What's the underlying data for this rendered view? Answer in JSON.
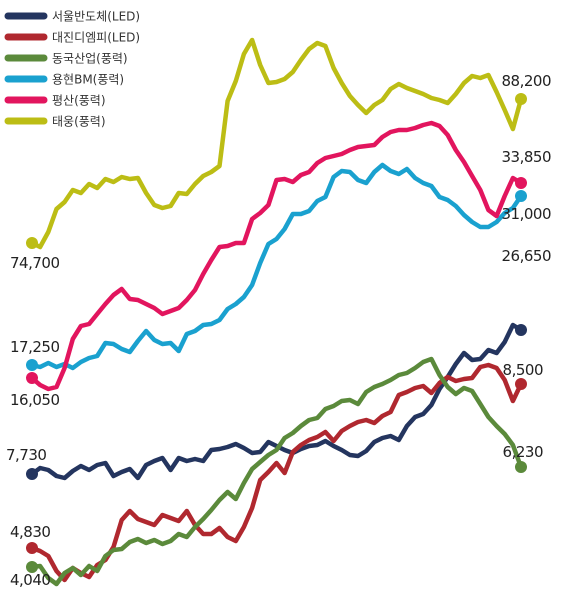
{
  "chart_data": {
    "type": "line",
    "title": "",
    "xlabel": "",
    "ylabel": "",
    "grid": false,
    "legend_position": "top-left",
    "x": [
      0,
      1,
      2,
      3,
      4,
      5,
      6,
      7,
      8,
      9,
      10,
      11,
      12,
      13,
      14,
      15,
      16,
      17,
      18,
      19,
      20,
      21,
      22,
      23,
      24,
      25,
      26,
      27,
      28,
      29,
      30,
      31,
      32,
      33,
      34,
      35,
      36,
      37,
      38,
      39,
      40,
      41,
      42,
      43,
      44,
      45,
      46,
      47,
      48,
      49,
      50,
      51,
      52,
      53,
      54,
      55,
      56,
      57,
      58,
      59,
      60
    ],
    "series": [
      {
        "name": "서울반도체(LED)",
        "color": "#24355f",
        "start_label": "7,730",
        "end_label": "26,650",
        "values": [
          474,
          468,
          470,
          476,
          478,
          471,
          466,
          470,
          465,
          463,
          476,
          472,
          469,
          478,
          465,
          461,
          458,
          470,
          458,
          461,
          459,
          461,
          450,
          449,
          447,
          444,
          448,
          453,
          452,
          442,
          446,
          450,
          453,
          449,
          446,
          445,
          441,
          446,
          450,
          455,
          456,
          451,
          442,
          438,
          436,
          440,
          426,
          417,
          414,
          405,
          389,
          377,
          364,
          353,
          360,
          359,
          350,
          353,
          342,
          325,
          330
        ]
      },
      {
        "name": "대진디엠피(LED)",
        "color": "#b0282f",
        "start_label": "4,830",
        "end_label": "8,500",
        "values": [
          548,
          551,
          556,
          571,
          580,
          568,
          573,
          577,
          565,
          560,
          547,
          520,
          511,
          519,
          522,
          525,
          515,
          518,
          521,
          511,
          525,
          534,
          534,
          528,
          537,
          541,
          527,
          508,
          480,
          472,
          463,
          473,
          452,
          445,
          440,
          437,
          432,
          441,
          431,
          426,
          422,
          420,
          423,
          416,
          412,
          395,
          392,
          388,
          386,
          393,
          383,
          377,
          381,
          379,
          378,
          367,
          365,
          368,
          380,
          401,
          384
        ]
      },
      {
        "name": "동국산업(풍력)",
        "color": "#5b8a3b",
        "start_label": "4,040",
        "end_label": "6,230",
        "values": [
          567,
          566,
          578,
          584,
          573,
          568,
          575,
          566,
          571,
          556,
          550,
          549,
          542,
          539,
          543,
          540,
          544,
          541,
          534,
          537,
          527,
          519,
          510,
          500,
          492,
          499,
          483,
          469,
          462,
          455,
          450,
          438,
          433,
          426,
          420,
          418,
          409,
          406,
          401,
          400,
          404,
          392,
          387,
          384,
          380,
          375,
          373,
          368,
          362,
          359,
          375,
          387,
          394,
          388,
          391,
          404,
          417,
          426,
          434,
          445,
          467
        ]
      },
      {
        "name": "용현BM(풍력)",
        "color": "#1aa1cf",
        "start_label": "17,250",
        "end_label": "31,000",
        "values": [
          365,
          367,
          363,
          367,
          364,
          368,
          362,
          358,
          356,
          343,
          344,
          349,
          352,
          341,
          331,
          340,
          344,
          343,
          351,
          334,
          331,
          325,
          324,
          320,
          309,
          304,
          297,
          285,
          263,
          244,
          239,
          229,
          214,
          214,
          211,
          201,
          197,
          177,
          171,
          172,
          180,
          183,
          172,
          165,
          171,
          174,
          169,
          178,
          183,
          186,
          197,
          200,
          206,
          215,
          222,
          227,
          227,
          222,
          213,
          208,
          196
        ]
      },
      {
        "name": "평산(풍력)",
        "color": "#e2155e",
        "start_label": "16,050",
        "end_label": "33,850",
        "values": [
          378,
          385,
          389,
          387,
          368,
          339,
          326,
          324,
          314,
          304,
          295,
          289,
          299,
          300,
          304,
          308,
          314,
          311,
          308,
          300,
          290,
          274,
          260,
          247,
          246,
          243,
          243,
          219,
          213,
          205,
          180,
          179,
          182,
          175,
          172,
          163,
          158,
          156,
          154,
          150,
          147,
          146,
          145,
          137,
          132,
          130,
          130,
          128,
          125,
          123,
          126,
          135,
          150,
          162,
          176,
          190,
          210,
          216,
          196,
          178,
          183
        ]
      },
      {
        "name": "태웅(풍력)",
        "color": "#bcbd15",
        "start_label": "74,700",
        "end_label": "88,200",
        "values": [
          243,
          247,
          232,
          209,
          202,
          190,
          193,
          184,
          188,
          179,
          182,
          177,
          179,
          178,
          193,
          205,
          208,
          206,
          193,
          194,
          184,
          176,
          172,
          166,
          101,
          81,
          54,
          40,
          65,
          83,
          82,
          79,
          72,
          60,
          49,
          43,
          46,
          68,
          83,
          96,
          105,
          113,
          105,
          100,
          89,
          84,
          88,
          91,
          94,
          98,
          100,
          103,
          94,
          83,
          76,
          78,
          75,
          92,
          110,
          129,
          99
        ]
      }
    ]
  }
}
